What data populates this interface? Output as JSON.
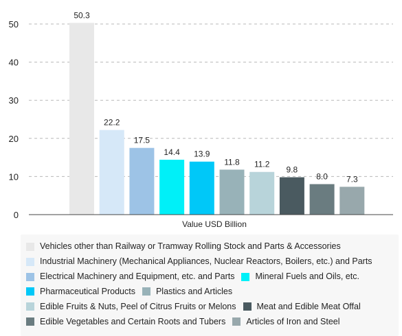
{
  "chart_data": {
    "type": "bar",
    "xlabel": "Value USD Billion",
    "ylim": [
      0,
      50
    ],
    "yticks": [
      0,
      10,
      20,
      30,
      40,
      50
    ],
    "grid": true,
    "legend_position": "bottom",
    "series": [
      {
        "name": "Vehicles other than Railway or Tramway Rolling Stock and Parts & Accessories",
        "value": 50.3,
        "label": "50.3",
        "color": "#e8e8e8"
      },
      {
        "name": "Industrial Machinery (Mechanical Appliances, Nuclear Reactors, Boilers, etc.) and Parts",
        "value": 22.2,
        "label": "22.2",
        "color": "#d6e8f8"
      },
      {
        "name": "Electrical Machinery and Equipment, etc. and Parts",
        "value": 17.5,
        "label": "17.5",
        "color": "#9dc3e6"
      },
      {
        "name": "Mineral Fuels and Oils, etc.",
        "value": 14.4,
        "label": "14.4",
        "color": "#00f0f8"
      },
      {
        "name": "Pharmaceutical Products",
        "value": 13.9,
        "label": "13.9",
        "color": "#00c8f8"
      },
      {
        "name": "Plastics and Articles",
        "value": 11.8,
        "label": "11.8",
        "color": "#98b2b8"
      },
      {
        "name": "Edible Fruits & Nuts, Peel of Citrus Fruits or Melons",
        "value": 11.2,
        "label": "11.2",
        "color": "#b8d4da"
      },
      {
        "name": "Meat and Edible Meat Offal",
        "value": 9.8,
        "label": "9.8",
        "color": "#4a5a60"
      },
      {
        "name": "Edible Vegetables and Certain Roots and Tubers",
        "value": 8.0,
        "label": "8.0",
        "color": "#6a7c80"
      },
      {
        "name": "Articles of Iron and Steel",
        "value": 7.3,
        "label": "7.3",
        "color": "#98a8ac"
      }
    ]
  },
  "legend_rows": [
    [
      0
    ],
    [
      1
    ],
    [
      2,
      3
    ],
    [
      4,
      5
    ],
    [
      6,
      7
    ],
    [
      8,
      9
    ]
  ]
}
